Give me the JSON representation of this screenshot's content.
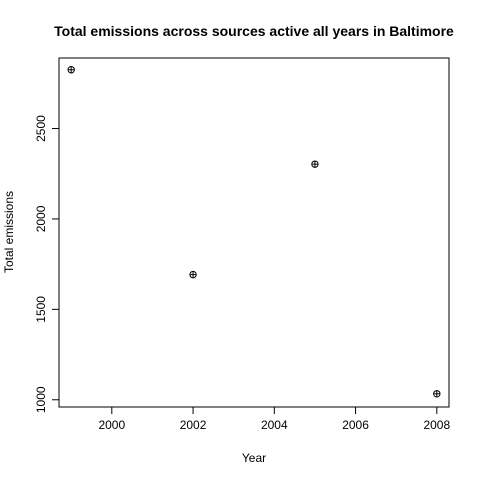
{
  "chart_data": {
    "type": "scatter",
    "title": "Total emissions across sources active all years in Baltimore",
    "xlabel": "Year",
    "ylabel": "Total emissions",
    "xlim": [
      1998.7,
      2008.3
    ],
    "ylim": [
      960,
      2890
    ],
    "x_ticks": [
      2000,
      2002,
      2004,
      2006,
      2008
    ],
    "x_tick_labels": [
      "2000",
      "2002",
      "2004",
      "2006",
      "2008"
    ],
    "y_ticks": [
      1000,
      1500,
      2000,
      2500
    ],
    "y_tick_labels": [
      "1000",
      "1500",
      "2000",
      "2500"
    ],
    "grid": false,
    "marker": "circle-plus",
    "series": [
      {
        "x": [
          1999,
          2002,
          2005,
          2008
        ],
        "y": [
          2825,
          1692,
          2303,
          1033
        ]
      }
    ]
  }
}
